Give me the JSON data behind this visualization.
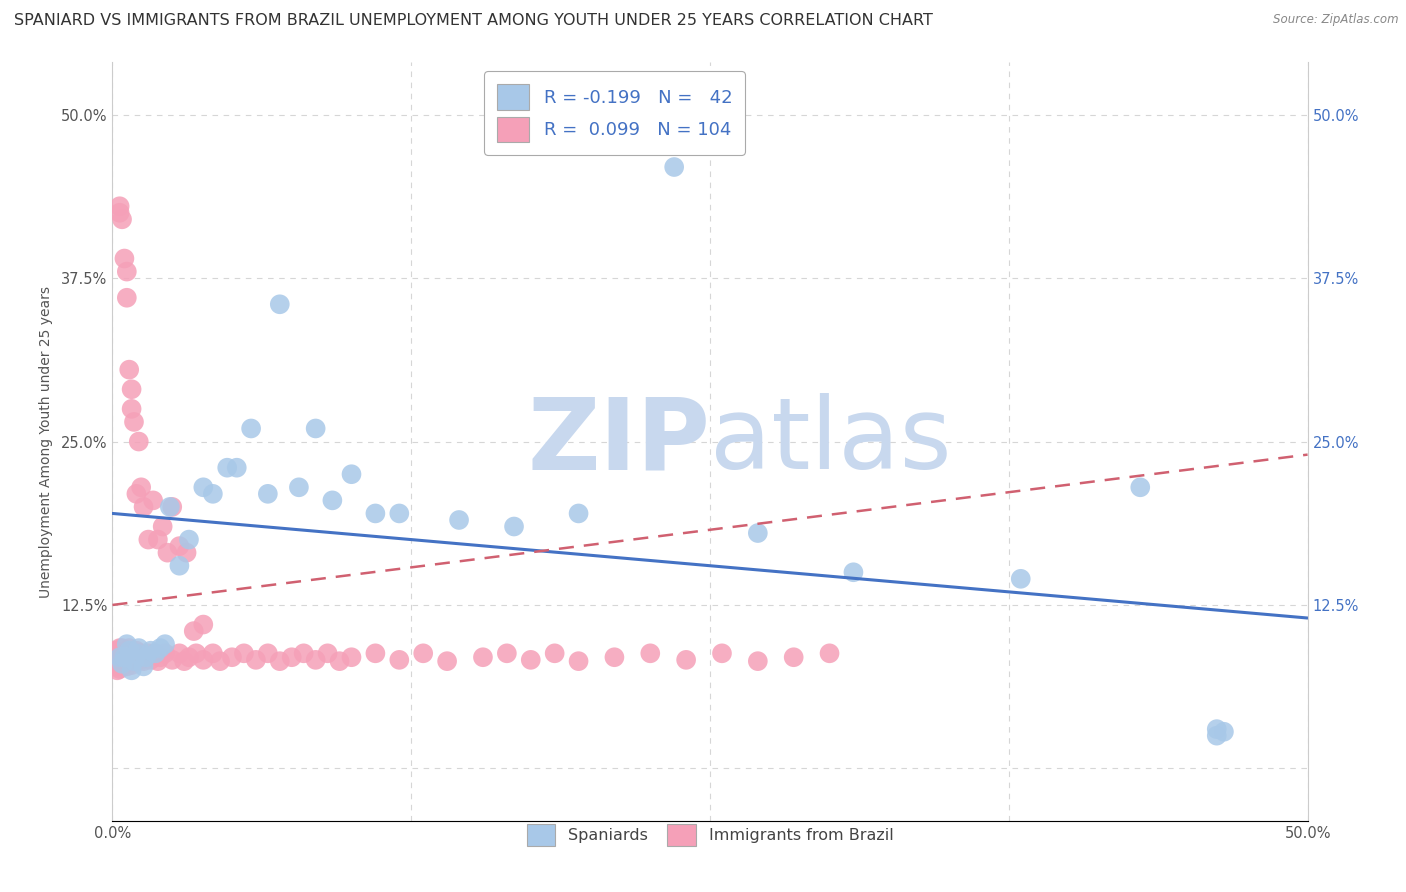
{
  "title": "SPANIARD VS IMMIGRANTS FROM BRAZIL UNEMPLOYMENT AMONG YOUTH UNDER 25 YEARS CORRELATION CHART",
  "source": "Source: ZipAtlas.com",
  "ylabel": "Unemployment Among Youth under 25 years",
  "xlim": [
    0.0,
    0.5
  ],
  "ylim": [
    -0.04,
    0.54
  ],
  "spaniard_color": "#a8c8e8",
  "brazil_color": "#f5a0b8",
  "spaniard_edge": "#7aaad0",
  "brazil_edge": "#e080a0",
  "spaniard_line_color": "#4472c4",
  "brazil_line_color": "#d06070",
  "watermark_zip": "ZIP",
  "watermark_atlas": "atlas",
  "watermark_color": "#dce8f5",
  "background_color": "#ffffff",
  "grid_color": "#cccccc",
  "title_fontsize": 11.5,
  "axis_label_fontsize": 10,
  "tick_fontsize": 10.5,
  "right_tick_color": "#4472c4",
  "legend_r1": "R = -0.199",
  "legend_n1": "N =  42",
  "legend_r2": "R =  0.099",
  "legend_n2": "N = 104",
  "sp_x": [
    0.003,
    0.004,
    0.005,
    0.006,
    0.007,
    0.008,
    0.009,
    0.01,
    0.011,
    0.013,
    0.014,
    0.016,
    0.018,
    0.02,
    0.022,
    0.024,
    0.028,
    0.032,
    0.038,
    0.042,
    0.048,
    0.052,
    0.058,
    0.065,
    0.07,
    0.078,
    0.085,
    0.092,
    0.1,
    0.11,
    0.12,
    0.145,
    0.168,
    0.195,
    0.235,
    0.27,
    0.31,
    0.38,
    0.43,
    0.462,
    0.462,
    0.465
  ],
  "sp_y": [
    0.085,
    0.08,
    0.085,
    0.095,
    0.09,
    0.075,
    0.082,
    0.088,
    0.092,
    0.078,
    0.085,
    0.09,
    0.088,
    0.092,
    0.095,
    0.2,
    0.155,
    0.175,
    0.215,
    0.21,
    0.23,
    0.23,
    0.26,
    0.21,
    0.355,
    0.215,
    0.26,
    0.205,
    0.225,
    0.195,
    0.195,
    0.19,
    0.185,
    0.195,
    0.46,
    0.18,
    0.15,
    0.145,
    0.215,
    0.03,
    0.025,
    0.028
  ],
  "br_x": [
    0.001,
    0.001,
    0.002,
    0.002,
    0.002,
    0.002,
    0.003,
    0.003,
    0.003,
    0.003,
    0.004,
    0.004,
    0.004,
    0.004,
    0.005,
    0.005,
    0.005,
    0.005,
    0.006,
    0.006,
    0.006,
    0.006,
    0.006,
    0.007,
    0.007,
    0.007,
    0.008,
    0.008,
    0.008,
    0.009,
    0.009,
    0.01,
    0.01,
    0.011,
    0.011,
    0.012,
    0.012,
    0.013,
    0.014,
    0.015,
    0.016,
    0.018,
    0.019,
    0.02,
    0.022,
    0.025,
    0.028,
    0.03,
    0.032,
    0.035,
    0.038,
    0.042,
    0.045,
    0.05,
    0.055,
    0.06,
    0.065,
    0.07,
    0.075,
    0.08,
    0.085,
    0.09,
    0.095,
    0.1,
    0.11,
    0.12,
    0.13,
    0.14,
    0.155,
    0.165,
    0.175,
    0.185,
    0.195,
    0.21,
    0.225,
    0.24,
    0.255,
    0.27,
    0.285,
    0.3,
    0.003,
    0.003,
    0.004,
    0.005,
    0.006,
    0.006,
    0.007,
    0.008,
    0.008,
    0.009,
    0.01,
    0.011,
    0.012,
    0.013,
    0.015,
    0.017,
    0.019,
    0.021,
    0.023,
    0.025,
    0.028,
    0.031,
    0.034,
    0.038
  ],
  "br_y": [
    0.08,
    0.09,
    0.075,
    0.085,
    0.088,
    0.078,
    0.082,
    0.086,
    0.092,
    0.076,
    0.084,
    0.088,
    0.092,
    0.078,
    0.082,
    0.088,
    0.08,
    0.085,
    0.083,
    0.088,
    0.078,
    0.09,
    0.084,
    0.082,
    0.087,
    0.092,
    0.083,
    0.088,
    0.079,
    0.085,
    0.088,
    0.082,
    0.09,
    0.085,
    0.088,
    0.083,
    0.088,
    0.082,
    0.085,
    0.088,
    0.083,
    0.088,
    0.082,
    0.085,
    0.088,
    0.083,
    0.088,
    0.082,
    0.085,
    0.088,
    0.083,
    0.088,
    0.082,
    0.085,
    0.088,
    0.083,
    0.088,
    0.082,
    0.085,
    0.088,
    0.083,
    0.088,
    0.082,
    0.085,
    0.088,
    0.083,
    0.088,
    0.082,
    0.085,
    0.088,
    0.083,
    0.088,
    0.082,
    0.085,
    0.088,
    0.083,
    0.088,
    0.082,
    0.085,
    0.088,
    0.43,
    0.425,
    0.42,
    0.39,
    0.38,
    0.36,
    0.305,
    0.29,
    0.275,
    0.265,
    0.21,
    0.25,
    0.215,
    0.2,
    0.175,
    0.205,
    0.175,
    0.185,
    0.165,
    0.2,
    0.17,
    0.165,
    0.105,
    0.11
  ]
}
